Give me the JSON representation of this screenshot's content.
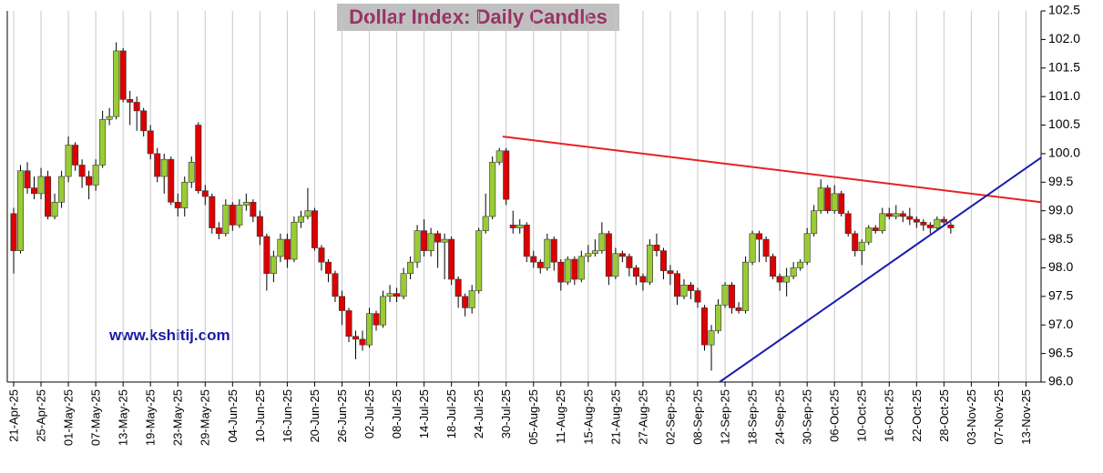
{
  "chart_data": {
    "type": "candlestick",
    "title": "Dollar Index: Daily Candles",
    "annotations": [
      "www.kshitij.com"
    ],
    "categories": [
      "21-Apr-25",
      null,
      null,
      null,
      "25-Apr-25",
      null,
      null,
      null,
      "01-May-25",
      null,
      null,
      null,
      "07-May-25",
      null,
      null,
      null,
      "13-May-25",
      null,
      null,
      null,
      "19-May-25",
      null,
      null,
      null,
      "23-May-25",
      null,
      null,
      null,
      "29-May-25",
      null,
      null,
      null,
      "04-Jun-25",
      null,
      null,
      null,
      "10-Jun-25",
      null,
      null,
      null,
      "16-Jun-25",
      null,
      null,
      null,
      "20-Jun-25",
      null,
      null,
      null,
      "26-Jun-25",
      null,
      null,
      null,
      "02-Jul-25",
      null,
      null,
      null,
      "08-Jul-25",
      null,
      null,
      null,
      "14-Jul-25",
      null,
      null,
      null,
      "18-Jul-25",
      null,
      null,
      null,
      "24-Jul-25",
      null,
      null,
      null,
      "30-Jul-25",
      null,
      null,
      null,
      "05-Aug-25",
      null,
      null,
      null,
      "11-Aug-25",
      null,
      null,
      null,
      "15-Aug-25",
      null,
      null,
      null,
      "21-Aug-25",
      null,
      null,
      null,
      "27-Aug-25",
      null,
      null,
      null,
      "02-Sep-25",
      null,
      null,
      null,
      "08-Sep-25",
      null,
      null,
      null,
      "12-Sep-25",
      null,
      null,
      null,
      "18-Sep-25",
      null,
      null,
      null,
      "24-Sep-25",
      null,
      null,
      null,
      "30-Sep-25",
      null,
      null,
      null,
      "06-Oct-25",
      null,
      null,
      null,
      "10-Oct-25",
      null,
      null,
      null,
      "16-Oct-25",
      null,
      null,
      null,
      "22-Oct-25",
      null,
      null,
      null,
      "28-Oct-25",
      null,
      null,
      null,
      "03-Nov-25",
      null,
      null,
      null,
      "07-Nov-25",
      null,
      null,
      null,
      "13-Nov-25"
    ],
    "open": [
      98.95,
      98.3,
      99.7,
      99.4,
      99.3,
      99.6,
      98.9,
      99.15,
      99.6,
      100.15,
      99.8,
      99.6,
      99.45,
      99.8,
      100.6,
      100.65,
      101.8,
      100.95,
      100.9,
      100.75,
      100.4,
      100.0,
      99.6,
      99.9,
      99.15,
      99.05,
      99.5,
      100.5,
      99.35,
      99.25,
      98.7,
      98.6,
      99.1,
      98.75,
      99.1,
      99.15,
      98.9,
      98.55,
      97.9,
      98.2,
      98.5,
      98.15,
      98.8,
      98.9,
      99.0,
      98.35,
      98.1,
      97.9,
      97.5,
      97.25,
      96.8,
      96.75,
      96.65,
      97.2,
      97.0,
      97.5,
      97.55,
      97.5,
      97.9,
      98.1,
      98.65,
      98.3,
      98.6,
      98.45,
      98.5,
      97.8,
      97.5,
      97.3,
      97.6,
      98.65,
      98.9,
      99.85,
      100.05,
      98.75,
      98.7,
      98.75,
      98.2,
      98.1,
      98.0,
      98.5,
      98.1,
      97.75,
      98.15,
      97.8,
      98.2,
      98.25,
      98.3,
      98.6,
      97.85,
      98.25,
      98.2,
      98.0,
      97.85,
      97.75,
      98.4,
      98.3,
      97.95,
      97.9,
      97.5,
      97.7,
      97.6,
      97.3,
      96.65,
      96.9,
      97.35,
      97.7,
      97.3,
      97.25,
      98.1,
      98.6,
      98.5,
      98.2,
      97.85,
      97.75,
      97.85,
      98.0,
      98.1,
      98.6,
      99.0,
      99.4,
      99.0,
      99.3,
      98.95,
      98.6,
      98.3,
      98.45,
      98.7,
      98.65,
      98.95,
      98.9,
      98.95,
      98.9,
      98.85,
      98.8,
      98.75,
      98.7,
      98.85,
      98.75,
      null,
      null,
      null,
      null,
      null,
      null,
      null,
      null,
      null,
      null,
      null
    ],
    "high": [
      99.05,
      99.8,
      99.85,
      99.6,
      99.75,
      99.7,
      99.3,
      99.7,
      100.3,
      100.2,
      99.9,
      99.7,
      99.9,
      100.75,
      100.8,
      101.95,
      101.85,
      101.1,
      101.0,
      100.8,
      100.5,
      100.1,
      100.0,
      99.95,
      99.3,
      99.6,
      99.95,
      100.55,
      99.45,
      99.3,
      98.8,
      99.2,
      99.15,
      99.2,
      99.3,
      99.2,
      99.0,
      98.6,
      98.3,
      98.6,
      98.6,
      98.9,
      99.0,
      99.4,
      99.05,
      98.4,
      98.15,
      97.95,
      97.6,
      97.3,
      96.9,
      96.9,
      97.3,
      97.25,
      97.6,
      97.7,
      97.65,
      98.0,
      98.2,
      98.75,
      98.85,
      98.7,
      98.65,
      98.6,
      98.55,
      97.85,
      97.55,
      97.7,
      98.7,
      99.3,
      99.95,
      100.1,
      100.1,
      99.0,
      98.85,
      98.8,
      98.3,
      98.15,
      98.6,
      98.55,
      98.15,
      98.2,
      98.2,
      98.3,
      98.4,
      98.5,
      98.8,
      98.65,
      98.35,
      98.3,
      98.25,
      98.05,
      97.9,
      98.5,
      98.6,
      98.35,
      98.05,
      97.95,
      97.8,
      97.75,
      97.65,
      97.35,
      97.0,
      97.45,
      97.75,
      97.75,
      97.4,
      98.2,
      98.65,
      98.65,
      98.55,
      98.25,
      97.9,
      98.0,
      98.1,
      98.15,
      98.7,
      99.1,
      99.55,
      99.45,
      99.45,
      99.35,
      99.0,
      98.65,
      98.5,
      98.75,
      98.75,
      99.05,
      99.05,
      99.1,
      99.0,
      99.05,
      98.9,
      98.85,
      98.8,
      98.9,
      98.9,
      98.8,
      null,
      null,
      null,
      null,
      null,
      null,
      null,
      null,
      null,
      null,
      null
    ],
    "low": [
      97.9,
      98.25,
      99.3,
      99.2,
      99.2,
      98.85,
      98.85,
      99.05,
      99.5,
      99.7,
      99.4,
      99.2,
      99.35,
      99.75,
      100.5,
      100.6,
      100.9,
      100.5,
      100.4,
      100.3,
      99.9,
      99.5,
      99.3,
      99.1,
      98.9,
      98.9,
      99.4,
      99.3,
      99.1,
      98.6,
      98.5,
      98.55,
      98.65,
      98.7,
      99.0,
      98.8,
      98.4,
      97.6,
      97.75,
      98.1,
      98.0,
      98.1,
      98.7,
      98.85,
      98.3,
      97.95,
      97.75,
      97.4,
      97.0,
      96.7,
      96.4,
      96.55,
      96.6,
      96.9,
      96.95,
      97.4,
      97.4,
      97.45,
      97.8,
      98.0,
      98.2,
      98.2,
      98.0,
      97.8,
      97.7,
      97.3,
      97.15,
      97.2,
      97.55,
      98.6,
      98.85,
      99.8,
      99.1,
      98.6,
      98.6,
      98.1,
      98.0,
      97.9,
      97.95,
      97.95,
      97.6,
      97.7,
      97.7,
      97.75,
      98.1,
      98.2,
      98.25,
      97.7,
      97.8,
      98.1,
      97.85,
      97.7,
      97.6,
      97.7,
      98.2,
      97.8,
      97.7,
      97.35,
      97.45,
      97.45,
      97.3,
      96.55,
      96.2,
      96.85,
      97.3,
      97.2,
      97.2,
      97.2,
      98.05,
      98.1,
      98.1,
      97.8,
      97.6,
      97.5,
      97.8,
      97.95,
      98.05,
      98.55,
      98.95,
      98.95,
      98.95,
      98.9,
      98.55,
      98.2,
      98.05,
      98.4,
      98.6,
      98.6,
      98.85,
      98.85,
      98.8,
      98.75,
      98.7,
      98.65,
      98.6,
      98.65,
      98.75,
      98.6,
      null,
      null,
      null,
      null,
      null,
      null,
      null,
      null,
      null,
      null,
      null
    ],
    "close": [
      98.3,
      99.7,
      99.4,
      99.3,
      99.6,
      98.9,
      99.15,
      99.6,
      100.15,
      99.8,
      99.6,
      99.45,
      99.8,
      100.6,
      100.65,
      101.8,
      100.95,
      100.9,
      100.75,
      100.4,
      100.0,
      99.6,
      99.9,
      99.15,
      99.05,
      99.5,
      99.85,
      99.35,
      99.25,
      98.7,
      98.6,
      99.1,
      98.75,
      99.1,
      99.15,
      98.9,
      98.55,
      97.9,
      98.2,
      98.5,
      98.15,
      98.8,
      98.9,
      99.0,
      98.35,
      98.1,
      97.9,
      97.5,
      97.25,
      96.8,
      96.75,
      96.65,
      97.2,
      97.0,
      97.5,
      97.55,
      97.5,
      97.9,
      98.1,
      98.65,
      98.3,
      98.6,
      98.45,
      98.5,
      97.8,
      97.5,
      97.3,
      97.6,
      98.65,
      98.9,
      99.85,
      100.05,
      99.2,
      98.7,
      98.75,
      98.2,
      98.1,
      98.0,
      98.5,
      98.1,
      97.75,
      98.15,
      97.8,
      98.2,
      98.25,
      98.3,
      98.6,
      97.85,
      98.25,
      98.2,
      98.0,
      97.85,
      97.75,
      98.4,
      98.3,
      97.95,
      97.9,
      97.5,
      97.7,
      97.6,
      97.4,
      96.65,
      96.9,
      97.35,
      97.7,
      97.3,
      97.25,
      98.1,
      98.6,
      98.5,
      98.2,
      97.85,
      97.75,
      97.85,
      98.0,
      98.1,
      98.6,
      99.0,
      99.4,
      99.0,
      99.3,
      98.95,
      98.6,
      98.3,
      98.45,
      98.7,
      98.65,
      98.95,
      98.9,
      98.95,
      98.9,
      98.85,
      98.8,
      98.75,
      98.7,
      98.85,
      98.8,
      98.7,
      null,
      null,
      null,
      null,
      null,
      null,
      null,
      null,
      null,
      null,
      null
    ],
    "up_color": "#99cc33",
    "down_color": "#dd0000",
    "trend_lines": [
      {
        "color": "#e82020",
        "points": [
          [
            71.5,
            100.3
          ],
          [
            150.2,
            99.15
          ]
        ]
      },
      {
        "color": "#1a1ab0",
        "points": [
          [
            103.2,
            96.0
          ],
          [
            150.2,
            99.93
          ]
        ]
      }
    ],
    "ylim": [
      96.0,
      102.5
    ],
    "yticks": [
      {
        "value": 96,
        "label": "96.0"
      },
      96.5,
      {
        "value": 97,
        "label": "97.0"
      },
      97.5,
      {
        "value": 98,
        "label": "98.0"
      },
      98.5,
      {
        "value": 99,
        "label": "99.0"
      },
      99.5,
      {
        "value": 100,
        "label": "100.0"
      },
      100.5,
      {
        "value": 101,
        "label": "101.0"
      },
      101.5,
      {
        "value": 102,
        "label": "102.0"
      },
      102.5
    ],
    "grid": "x",
    "y_axis_side": "right"
  }
}
